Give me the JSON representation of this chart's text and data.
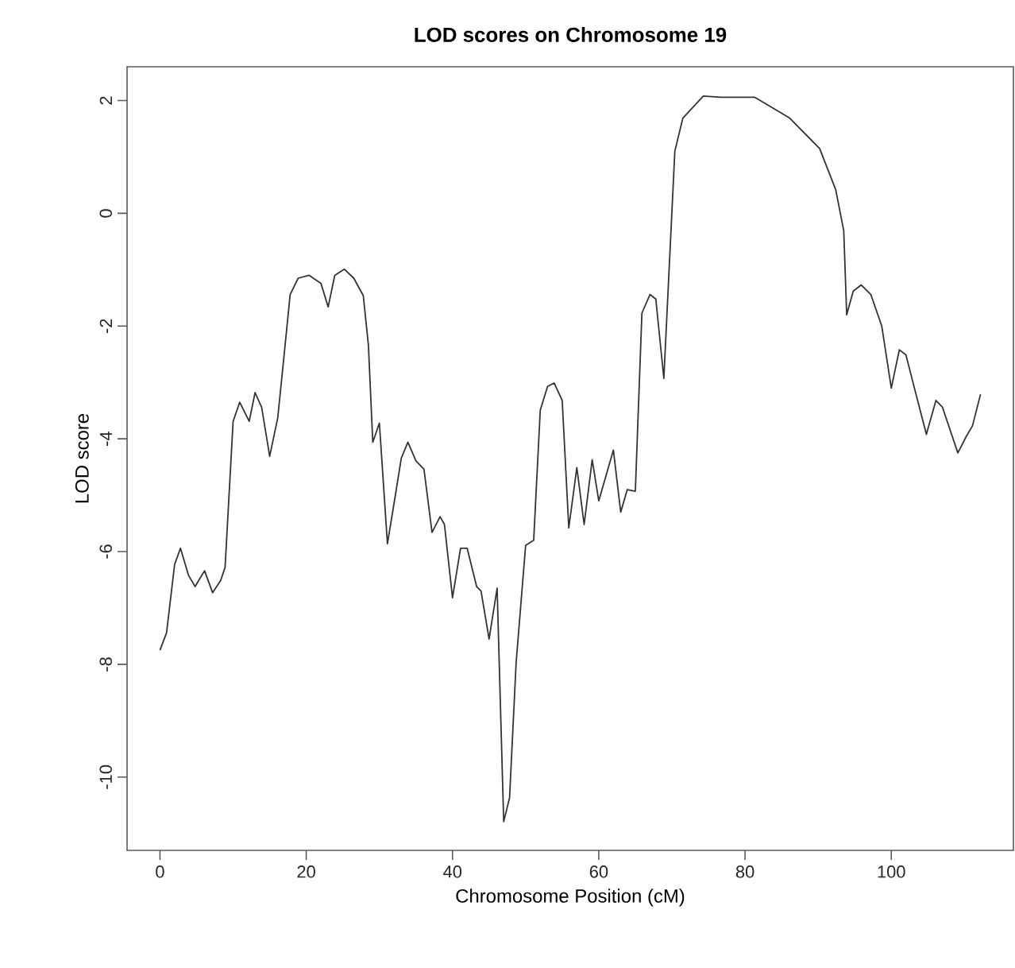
{
  "chart_data": {
    "type": "line",
    "title": "LOD scores on Chromosome 19",
    "xlabel": "Chromosome Position (cM)",
    "ylabel": "LOD score",
    "xlim": [
      -4.5,
      116.7
    ],
    "ylim": [
      -11.3,
      2.6
    ],
    "xticks": [
      0,
      20,
      40,
      60,
      80,
      100
    ],
    "yticks": [
      -10,
      -8,
      -6,
      -4,
      -2,
      0,
      2
    ],
    "marker": "none",
    "line_style": "solid",
    "series": [
      {
        "color": "#333333",
        "x": [
          0,
          0.9,
          2.0,
          2.8,
          3.9,
          4.8,
          6.1,
          7.2,
          8.3,
          8.9,
          10.0,
          10.9,
          12.2,
          13.0,
          13.9,
          15.0,
          16.1,
          17.0,
          17.8,
          18.9,
          20.4,
          22.0,
          23.0,
          23.9,
          25.2,
          26.5,
          27.8,
          28.5,
          29.1,
          30.0,
          31.1,
          32.0,
          33.0,
          33.9,
          35.0,
          36.1,
          37.2,
          38.3,
          38.9,
          40.0,
          41.1,
          42.0,
          43.3,
          43.9,
          45.0,
          46.1,
          47.0,
          47.8,
          48.7,
          50.0,
          51.1,
          52.0,
          53.0,
          53.9,
          55.0,
          55.9,
          57.0,
          58.0,
          59.1,
          60.0,
          62.0,
          63.0,
          63.9,
          65.0,
          65.9,
          67.0,
          67.8,
          68.9,
          70.4,
          71.5,
          74.3,
          76.7,
          81.3,
          86.1,
          90.2,
          92.4,
          93.5,
          93.9,
          94.8,
          95.9,
          97.2,
          98.7,
          100.0,
          101.1,
          102.0,
          103.5,
          104.8,
          106.1,
          107.0,
          109.1,
          110.2,
          111.1,
          112.2
        ],
        "values": [
          -7.75,
          -7.44,
          -6.23,
          -5.94,
          -6.42,
          -6.62,
          -6.34,
          -6.73,
          -6.51,
          -6.28,
          -3.69,
          -3.35,
          -3.69,
          -3.18,
          -3.44,
          -4.31,
          -3.63,
          -2.48,
          -1.44,
          -1.15,
          -1.1,
          -1.24,
          -1.66,
          -1.1,
          -0.99,
          -1.15,
          -1.46,
          -2.34,
          -4.06,
          -3.72,
          -5.86,
          -5.15,
          -4.34,
          -4.06,
          -4.39,
          -4.54,
          -5.66,
          -5.38,
          -5.52,
          -6.82,
          -5.94,
          -5.94,
          -6.62,
          -6.7,
          -7.55,
          -6.65,
          -10.79,
          -10.37,
          -7.97,
          -5.89,
          -5.8,
          -3.49,
          -3.07,
          -3.01,
          -3.32,
          -5.58,
          -4.51,
          -5.52,
          -4.37,
          -5.1,
          -4.2,
          -5.3,
          -4.9,
          -4.93,
          -1.77,
          -1.44,
          -1.52,
          -2.93,
          1.1,
          1.69,
          2.08,
          2.06,
          2.06,
          1.69,
          1.15,
          0.42,
          -0.31,
          -1.8,
          -1.38,
          -1.27,
          -1.44,
          -2.0,
          -3.1,
          -2.42,
          -2.51,
          -3.27,
          -3.92,
          -3.32,
          -3.44,
          -4.25,
          -3.97,
          -3.77,
          -3.21
        ]
      }
    ]
  }
}
